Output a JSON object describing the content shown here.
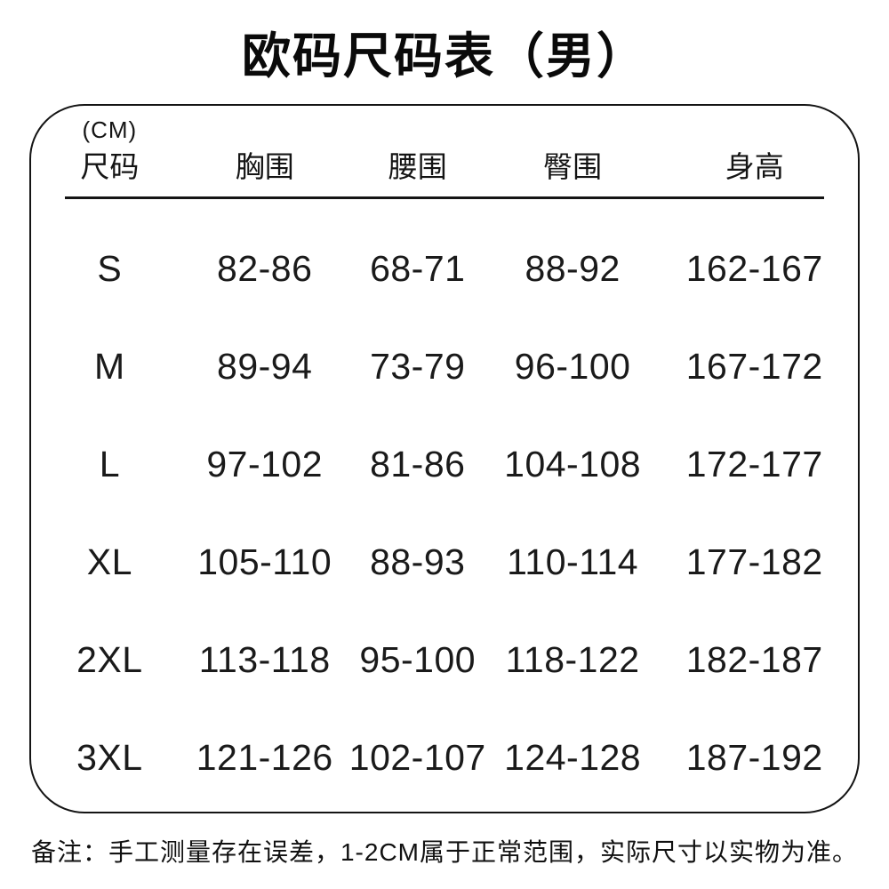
{
  "title": "欧码尺码表（男）",
  "table": {
    "unit_label": "(CM)",
    "headers": {
      "size": "尺码",
      "chest": "胸围",
      "waist": "腰围",
      "hip": "臀围",
      "height": "身高"
    },
    "rows": [
      {
        "size": "S",
        "chest": "82-86",
        "waist": "68-71",
        "hip": "88-92",
        "height": "162-167"
      },
      {
        "size": "M",
        "chest": "89-94",
        "waist": "73-79",
        "hip": "96-100",
        "height": "167-172"
      },
      {
        "size": "L",
        "chest": "97-102",
        "waist": "81-86",
        "hip": "104-108",
        "height": "172-177"
      },
      {
        "size": "XL",
        "chest": "105-110",
        "waist": "88-93",
        "hip": "110-114",
        "height": "177-182"
      },
      {
        "size": "2XL",
        "chest": "113-118",
        "waist": "95-100",
        "hip": "118-122",
        "height": "182-187"
      },
      {
        "size": "3XL",
        "chest": "121-126",
        "waist": "102-107",
        "hip": "124-128",
        "height": "187-192"
      }
    ]
  },
  "note": "备注：手工测量存在误差，1-2CM属于正常范围，实际尺寸以实物为准。",
  "colors": {
    "text": "#121212",
    "border": "#141414",
    "background": "#ffffff"
  }
}
